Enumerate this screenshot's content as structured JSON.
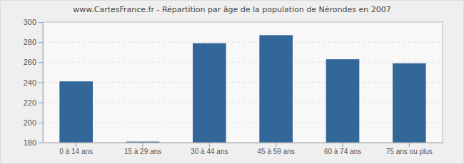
{
  "chart_data": {
    "type": "bar",
    "title": "www.CartesFrance.fr - Répartition par âge de la population de Nérondes en 2007",
    "categories": [
      "0 à 14 ans",
      "15 à 29 ans",
      "30 à 44 ans",
      "45 à 59 ans",
      "60 à 74 ans",
      "75 ans ou plus"
    ],
    "values": [
      241,
      181,
      279,
      287,
      263,
      259
    ],
    "color": "#336699",
    "ylim": [
      180,
      300
    ],
    "yticks": [
      180,
      200,
      220,
      240,
      260,
      280,
      300
    ],
    "grid": true
  }
}
